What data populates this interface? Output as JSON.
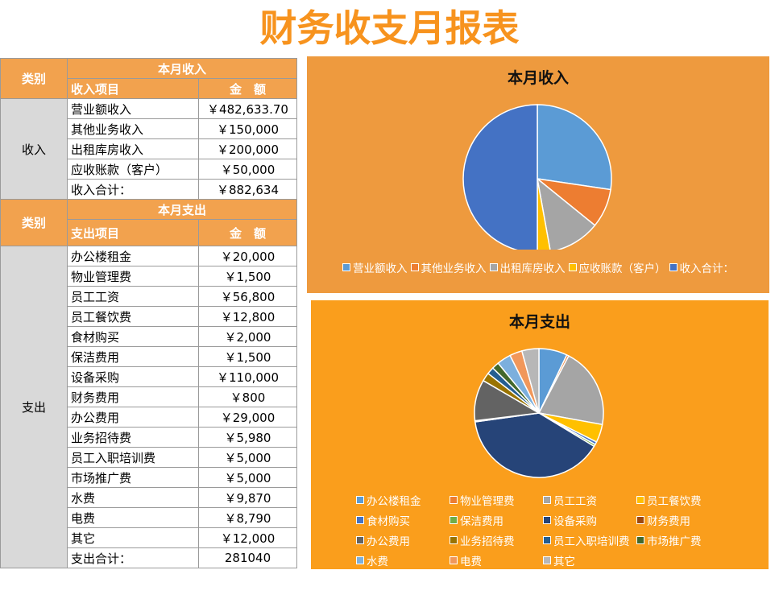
{
  "title": "财务收支月报表",
  "table": {
    "income": {
      "category_label": "类别",
      "header": "本月收入",
      "item_header": "收入项目",
      "amount_header": "金　额",
      "group": "收入",
      "rows": [
        [
          "营业额收入",
          "￥482,633.70"
        ],
        [
          "其他业务收入",
          "￥150,000"
        ],
        [
          "出租库房收入",
          "￥200,000"
        ],
        [
          "应收账款（客户）",
          "￥50,000"
        ],
        [
          "收入合计：",
          "￥882,634"
        ]
      ]
    },
    "expense": {
      "category_label": "类别",
      "header": "本月支出",
      "item_header": "支出项目",
      "amount_header": "金　额",
      "group": "支出",
      "rows": [
        [
          "办公楼租金",
          "￥20,000"
        ],
        [
          "物业管理费",
          "￥1,500"
        ],
        [
          "员工工资",
          "￥56,800"
        ],
        [
          "员工餐饮费",
          "￥12,800"
        ],
        [
          "食材购买",
          "￥2,000"
        ],
        [
          "保洁费用",
          "￥1,500"
        ],
        [
          "设备采购",
          "￥110,000"
        ],
        [
          "财务费用",
          "￥800"
        ],
        [
          "办公费用",
          "￥29,000"
        ],
        [
          "业务招待费",
          "￥5,980"
        ],
        [
          "员工入职培训费",
          "￥5,000"
        ],
        [
          "市场推广费",
          "￥5,000"
        ],
        [
          "水费",
          "￥9,870"
        ],
        [
          "电费",
          "￥8,790"
        ],
        [
          "其它",
          "￥12,000"
        ],
        [
          "支出合计：",
          "281040"
        ]
      ]
    }
  },
  "charts": [
    {
      "type": "pie",
      "title": "本月收入",
      "labels": [
        "营业额收入",
        "其他业务收入",
        "出租库房收入",
        "应收账款（客户）",
        "收入合计："
      ],
      "values": [
        482633.7,
        150000,
        200000,
        50000,
        882634
      ],
      "colors": [
        "#5B9BD5",
        "#ED7D31",
        "#A5A5A5",
        "#FFC000",
        "#4472C4"
      ]
    },
    {
      "type": "pie",
      "title": "本月支出",
      "labels": [
        "办公楼租金",
        "物业管理费",
        "员工工资",
        "员工餐饮费",
        "食材购买",
        "保洁费用",
        "设备采购",
        "财务费用",
        "办公费用",
        "业务招待费",
        "员工入职培训费",
        "市场推广费",
        "水费",
        "电费",
        "其它"
      ],
      "values": [
        20000,
        1500,
        56800,
        12800,
        2000,
        1500,
        110000,
        800,
        29000,
        5980,
        5000,
        5000,
        9870,
        8790,
        12000
      ],
      "colors": [
        "#5B9BD5",
        "#ED7D31",
        "#A5A5A5",
        "#FFC000",
        "#4472C4",
        "#70AD47",
        "#264478",
        "#9E480E",
        "#636363",
        "#997300",
        "#255E91",
        "#43682B",
        "#7CAFDD",
        "#F1975A",
        "#B7B7B7"
      ]
    }
  ]
}
